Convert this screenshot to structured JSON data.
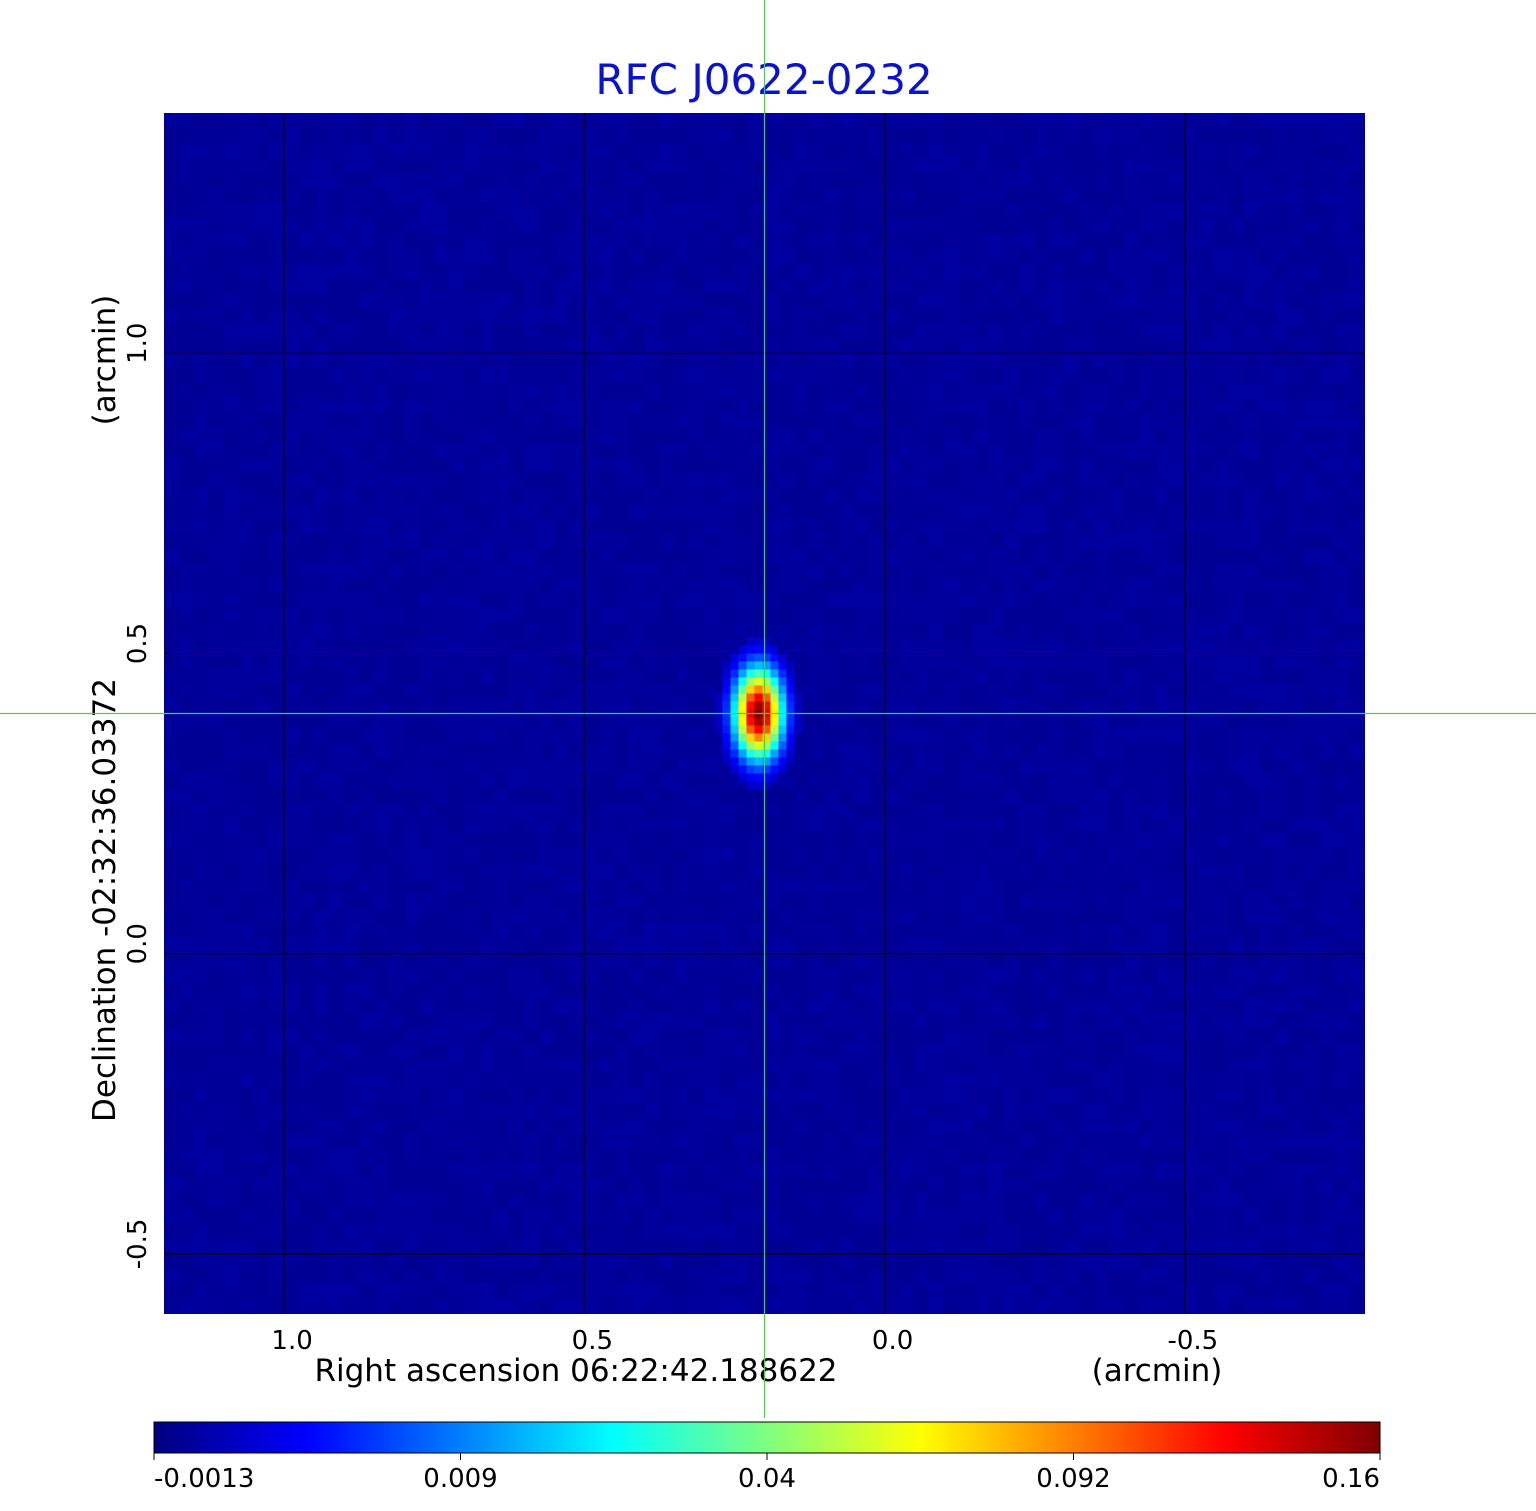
{
  "chart_data": {
    "type": "heatmap",
    "title": "RFC J0622-0232",
    "title_color": "#0a12cc",
    "xlabel": "Right ascension  06:22:42.188622",
    "xunit": "(arcmin)",
    "ylabel": "Declination  -02:32:36.03372",
    "yunit": "(arcmin)",
    "xlim": [
      1.2,
      -0.8
    ],
    "ylim": [
      -0.6,
      1.4
    ],
    "x_ticks": [
      1.0,
      0.5,
      0.0,
      -0.5
    ],
    "x_tick_labels": [
      "1.0",
      "0.5",
      "0.0",
      "-0.5"
    ],
    "y_ticks": [
      1.0,
      0.5,
      0.0,
      -0.5
    ],
    "y_tick_labels": [
      "1.0",
      "0.5",
      "0.0",
      "-0.5"
    ],
    "grid": true,
    "grid_color": "#000000",
    "background_value": 0.003,
    "source": {
      "x": 0.21,
      "y": 0.4,
      "peak": 0.16,
      "sigma_x": 0.028,
      "sigma_y": 0.052
    },
    "crosshair": {
      "x": 0.2,
      "y": 0.4,
      "color": "#33dd33"
    },
    "colorbar": {
      "colormap": "jet",
      "tick_labels": [
        "-0.0013",
        "0.009",
        "0.04",
        "0.092",
        "0.16"
      ],
      "vmin": -0.0013,
      "vmax": 0.16
    },
    "colors": {
      "jet": [
        "#00007f",
        "#0000ff",
        "#007fff",
        "#00ffff",
        "#7fff7f",
        "#ffff00",
        "#ff7f00",
        "#ff0000",
        "#7f0000"
      ]
    }
  }
}
